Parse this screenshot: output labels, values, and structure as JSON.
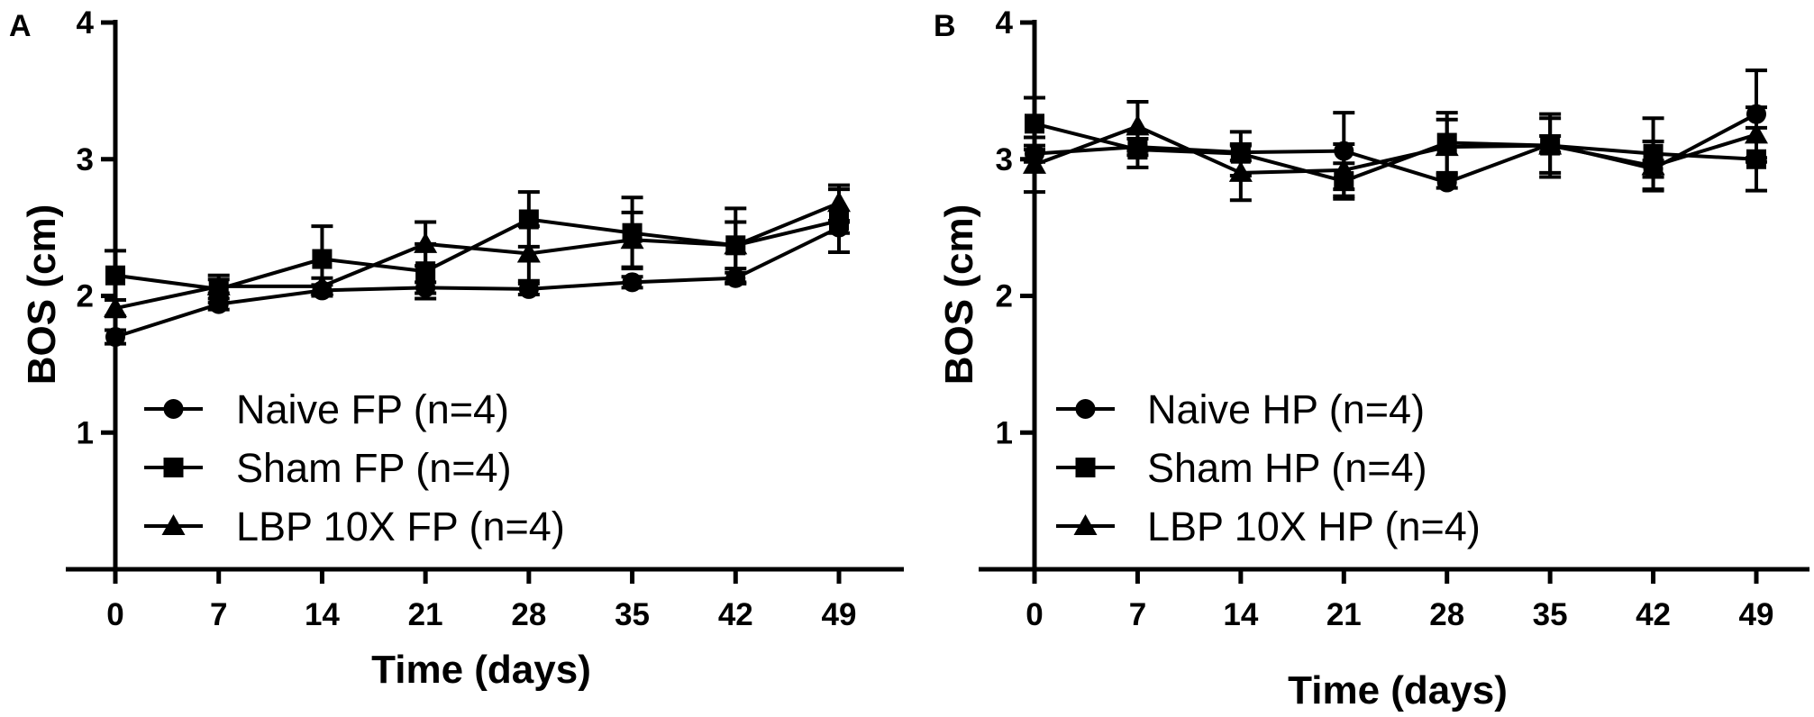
{
  "figure": {
    "panels": [
      "A",
      "B"
    ]
  },
  "chart_data": [
    {
      "panel": "A",
      "type": "line",
      "xlabel": "Time (days)",
      "ylabel": "BOS (cm)",
      "x": [
        0,
        7,
        14,
        21,
        28,
        35,
        42,
        49
      ],
      "xticks": [
        0,
        7,
        14,
        21,
        28,
        35,
        42,
        49
      ],
      "yticks": [
        1,
        2,
        3,
        4
      ],
      "xlim": [
        -2,
        51
      ],
      "ylim": [
        0,
        4
      ],
      "legend_position": "bottom-left",
      "series": [
        {
          "name": "Naive FP (n=4)",
          "marker": "circle",
          "values": [
            1.7,
            1.94,
            2.04,
            2.06,
            2.05,
            2.1,
            2.13,
            2.5
          ],
          "errors": [
            0.05,
            0.04,
            0.04,
            0.04,
            0.04,
            0.04,
            0.04,
            0.04
          ]
        },
        {
          "name": "Sham FP (n=4)",
          "marker": "square",
          "values": [
            2.15,
            2.05,
            2.27,
            2.18,
            2.56,
            2.46,
            2.37,
            2.55
          ],
          "errors": [
            0.18,
            0.1,
            0.24,
            0.2,
            0.2,
            0.26,
            0.27,
            0.23
          ]
        },
        {
          "name": "LBP 10X FP (n=4)",
          "marker": "triangle",
          "values": [
            1.91,
            2.07,
            2.07,
            2.38,
            2.31,
            2.41,
            2.37,
            2.68
          ],
          "errors": [
            0.06,
            0.05,
            0.06,
            0.16,
            0.2,
            0.2,
            0.17,
            0.13
          ]
        }
      ]
    },
    {
      "panel": "B",
      "type": "line",
      "xlabel": "Time (days)",
      "ylabel": "BOS (cm)",
      "x": [
        0,
        7,
        14,
        21,
        28,
        35,
        42,
        49
      ],
      "xticks": [
        0,
        7,
        14,
        21,
        28,
        35,
        42,
        49
      ],
      "yticks": [
        1,
        2,
        3,
        4
      ],
      "xlim": [
        -2,
        51
      ],
      "ylim": [
        0,
        4
      ],
      "legend_position": "bottom-left",
      "series": [
        {
          "name": "Naive HP (n=4)",
          "marker": "circle",
          "values": [
            3.04,
            3.09,
            3.05,
            3.06,
            2.83,
            3.11,
            2.93,
            3.33
          ],
          "errors": [
            0.06,
            0.06,
            0.06,
            0.28,
            0.04,
            0.06,
            0.06,
            0.32
          ]
        },
        {
          "name": "Sham HP (n=4)",
          "marker": "square",
          "values": [
            3.26,
            3.07,
            3.04,
            2.84,
            3.12,
            3.1,
            3.04,
            3.0
          ],
          "errors": [
            0.19,
            0.13,
            0.16,
            0.13,
            0.22,
            0.23,
            0.26,
            0.23
          ]
        },
        {
          "name": "LBP 10X HP (n=4)",
          "marker": "triangle",
          "values": [
            2.96,
            3.24,
            2.9,
            2.92,
            3.09,
            3.1,
            2.95,
            3.18
          ],
          "errors": [
            0.2,
            0.18,
            0.2,
            0.19,
            0.2,
            0.2,
            0.18,
            0.2
          ]
        }
      ]
    }
  ]
}
